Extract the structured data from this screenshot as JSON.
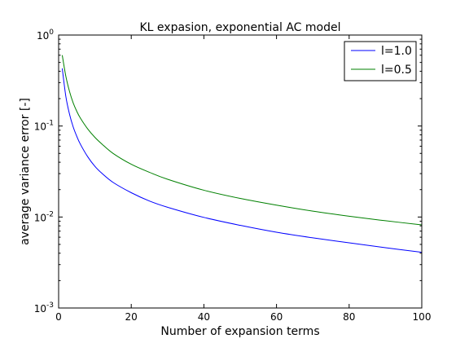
{
  "chart_data": {
    "type": "line",
    "title": "KL expasion, exponential AC model",
    "xlabel": "Number of expansion terms",
    "ylabel": "average variance error [-]",
    "xlim": [
      0,
      100
    ],
    "ylim": [
      0.001,
      1
    ],
    "yscale": "log",
    "grid": false,
    "legend_position": "top-right",
    "x_ticks": [
      0,
      20,
      40,
      60,
      80,
      100
    ],
    "y_ticks": [
      {
        "base": "10",
        "exp": "0",
        "value": 1
      },
      {
        "base": "10",
        "exp": "-1",
        "value": 0.1
      },
      {
        "base": "10",
        "exp": "-2",
        "value": 0.01
      },
      {
        "base": "10",
        "exp": "-3",
        "value": 0.001
      }
    ],
    "series": [
      {
        "name": "l=1.0",
        "color": "#0000ff",
        "x": [
          1,
          2,
          3,
          4,
          5,
          6,
          8,
          10,
          12,
          15,
          20,
          25,
          30,
          40,
          50,
          60,
          70,
          80,
          90,
          100
        ],
        "y": [
          0.43,
          0.21,
          0.135,
          0.098,
          0.077,
          0.063,
          0.046,
          0.036,
          0.03,
          0.024,
          0.0185,
          0.015,
          0.0128,
          0.0099,
          0.0081,
          0.0068,
          0.0059,
          0.0052,
          0.0046,
          0.0041
        ]
      },
      {
        "name": "l=0.5",
        "color": "#008000",
        "x": [
          1,
          2,
          3,
          4,
          5,
          6,
          8,
          10,
          12,
          15,
          20,
          25,
          30,
          40,
          50,
          60,
          70,
          80,
          90,
          100
        ],
        "y": [
          0.6,
          0.35,
          0.24,
          0.18,
          0.145,
          0.122,
          0.093,
          0.075,
          0.063,
          0.05,
          0.038,
          0.031,
          0.026,
          0.0197,
          0.016,
          0.0135,
          0.0116,
          0.0102,
          0.0091,
          0.0082
        ]
      }
    ]
  }
}
